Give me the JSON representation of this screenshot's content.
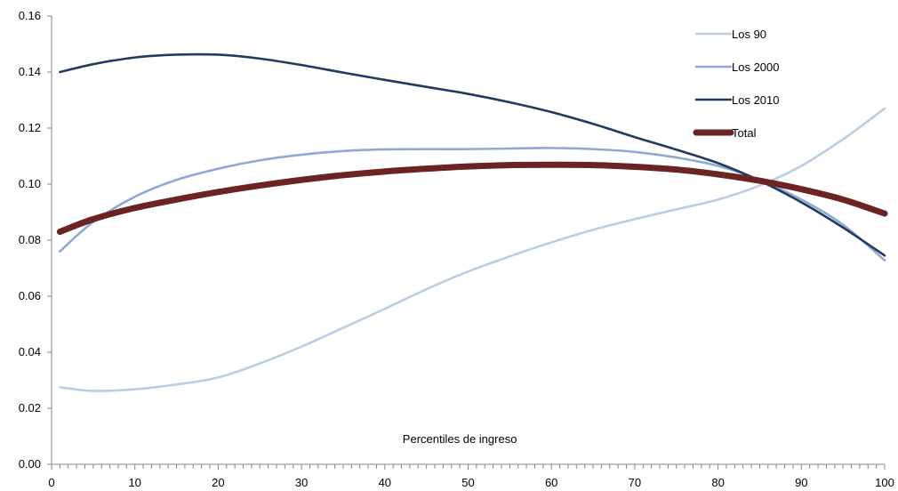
{
  "chart_data": {
    "type": "line",
    "title": "",
    "xlabel": "Percentiles de ingreso",
    "ylabel": "",
    "xlim": [
      0,
      100
    ],
    "ylim": [
      0,
      0.16
    ],
    "x_ticks": [
      0,
      10,
      20,
      30,
      40,
      50,
      60,
      70,
      80,
      90,
      100
    ],
    "x_tick_labels": [
      "0",
      "10",
      "20",
      "30",
      "40",
      "50",
      "60",
      "70",
      "80",
      "90",
      "100"
    ],
    "y_ticks": [
      0,
      0.02,
      0.04,
      0.06,
      0.08,
      0.1,
      0.12,
      0.14,
      0.16
    ],
    "y_tick_labels": [
      "0.00",
      "0.02",
      "0.04",
      "0.06",
      "0.08",
      "0.10",
      "0.12",
      "0.14",
      "0.16"
    ],
    "grid": false,
    "legend_position": "top-right",
    "series": [
      {
        "name": "Los 90",
        "color": "#b9cde5",
        "line_weight": "thin",
        "x": [
          1,
          5,
          10,
          15,
          20,
          25,
          30,
          35,
          40,
          45,
          50,
          55,
          60,
          65,
          70,
          75,
          80,
          85,
          90,
          95,
          100
        ],
        "y": [
          0.0275,
          0.0262,
          0.0268,
          0.0285,
          0.031,
          0.036,
          0.042,
          0.0487,
          0.0555,
          0.0625,
          0.0688,
          0.0742,
          0.0792,
          0.0837,
          0.0875,
          0.091,
          0.0945,
          0.0995,
          0.1065,
          0.116,
          0.127
        ]
      },
      {
        "name": "Los 2000",
        "color": "#8eaad2",
        "line_weight": "medium",
        "x": [
          1,
          5,
          10,
          15,
          20,
          25,
          30,
          35,
          40,
          45,
          50,
          55,
          60,
          65,
          70,
          75,
          80,
          85,
          90,
          95,
          100
        ],
        "y": [
          0.076,
          0.0865,
          0.0955,
          0.1015,
          0.1055,
          0.1085,
          0.1105,
          0.1118,
          0.1124,
          0.1125,
          0.1125,
          0.1127,
          0.1129,
          0.1125,
          0.1115,
          0.1095,
          0.1065,
          0.1015,
          0.0945,
          0.0855,
          0.0728
        ]
      },
      {
        "name": "Los 2010",
        "color": "#1f3b5e",
        "line_weight": "medium",
        "x": [
          1,
          5,
          10,
          15,
          20,
          25,
          30,
          35,
          40,
          45,
          50,
          55,
          60,
          65,
          70,
          75,
          80,
          85,
          90,
          95,
          100
        ],
        "y": [
          0.14,
          0.1428,
          0.1452,
          0.1462,
          0.1462,
          0.1448,
          0.1425,
          0.1398,
          0.1372,
          0.1347,
          0.1322,
          0.1292,
          0.1257,
          0.1215,
          0.1168,
          0.1123,
          0.1075,
          0.1012,
          0.0935,
          0.0845,
          0.0745
        ]
      },
      {
        "name": "Total",
        "color": "#6b2323",
        "line_weight": "thick",
        "x": [
          1,
          5,
          10,
          15,
          20,
          25,
          30,
          35,
          40,
          45,
          50,
          55,
          60,
          65,
          70,
          75,
          80,
          85,
          90,
          95,
          100
        ],
        "y": [
          0.083,
          0.0875,
          0.0915,
          0.0945,
          0.0972,
          0.0995,
          0.1015,
          0.1032,
          0.1045,
          0.1055,
          0.1063,
          0.1068,
          0.1069,
          0.1068,
          0.1062,
          0.1052,
          0.1035,
          0.1012,
          0.0982,
          0.0945,
          0.0895
        ]
      }
    ]
  }
}
